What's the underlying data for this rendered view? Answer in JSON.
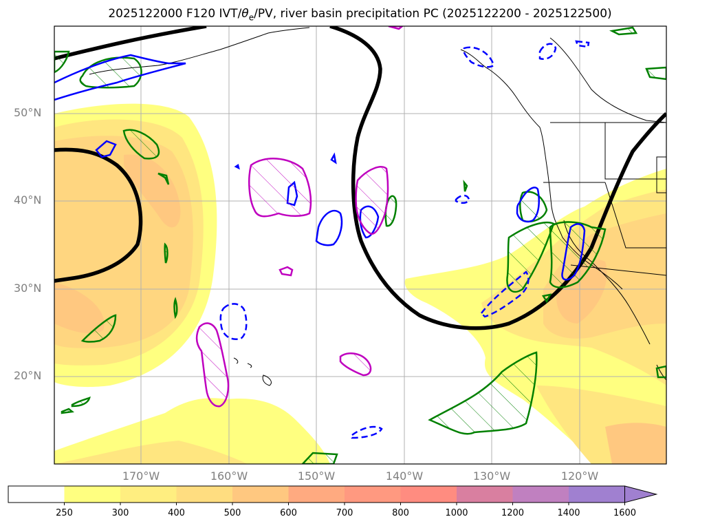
{
  "title": "2025122000 F120 IVT/θe/PV, river basin precipitation PC (2025122200 - 2025122500)",
  "title_parts": {
    "before": "2025122000 F120 IVT/",
    "theta": "θ",
    "sub": "e",
    "after": "/PV, river basin precipitation PC (2025122200 - 2025122500)"
  },
  "lat_labels": [
    "50°N",
    "40°N",
    "30°N",
    "20°N"
  ],
  "lon_labels": [
    "170°W",
    "160°W",
    "150°W",
    "140°W",
    "130°W",
    "120°W"
  ],
  "colorbar": {
    "ticks": [
      "250",
      "300",
      "400",
      "500",
      "600",
      "700",
      "800",
      "1000",
      "1200",
      "1400",
      "1600"
    ],
    "colors": [
      "#ffffff",
      "#ffff80",
      "#ffee80",
      "#ffdd80",
      "#ffc880",
      "#ffaa80",
      "#ff9980",
      "#ff8c80",
      "#d97fa0",
      "#c080c0",
      "#a080d0"
    ],
    "extend": "max"
  },
  "colors": {
    "ivt_light": "#ffff80",
    "ivt_mid": "#ffe680",
    "ivt_dark": "#ffc880",
    "pv_contour": "#000000",
    "green_contour": "#008000",
    "blue_contour": "#0000ff",
    "magenta_contour": "#bf00bf",
    "grid": "#b0b0b0"
  }
}
